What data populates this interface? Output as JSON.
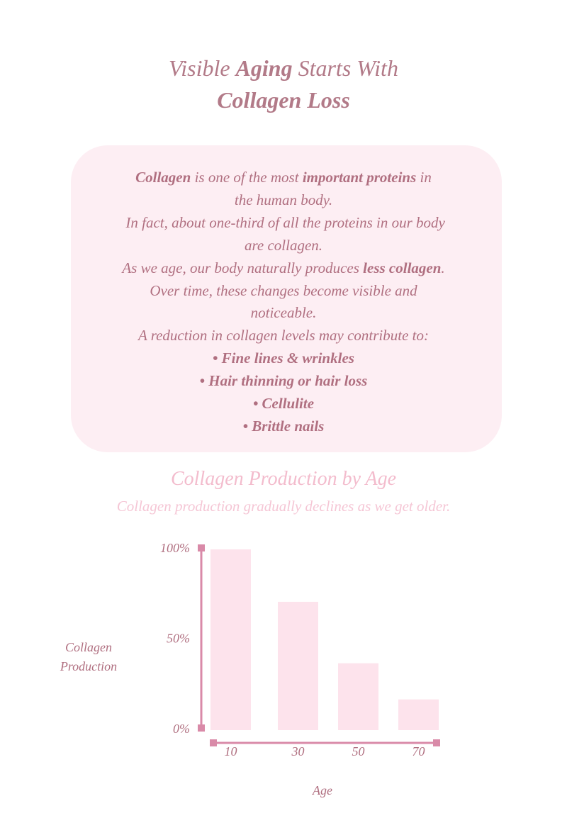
{
  "header": {
    "title_lines": [
      [
        {
          "text": "Visible "
        },
        {
          "text": "Aging",
          "bold": true
        },
        {
          "text": " Starts With"
        }
      ],
      [
        {
          "text": "Collagen Loss",
          "bold": true
        }
      ]
    ]
  },
  "intro": {
    "lines": [
      [
        {
          "text": "Collagen",
          "bold": true
        },
        {
          "text": " is one of the most "
        },
        {
          "text": "important proteins",
          "bold": true
        },
        {
          "text": " in"
        }
      ],
      [
        {
          "text": "the human body."
        }
      ],
      [
        {
          "text": " In fact, about one-third of all the proteins in our body"
        }
      ],
      [
        {
          "text": "are collagen."
        }
      ],
      [
        {
          "text": "As we age, our body naturally produces "
        },
        {
          "text": "less collagen",
          "bold": true
        },
        {
          "text": "."
        }
      ],
      [
        {
          "text": "Over time, these changes become visible and"
        }
      ],
      [
        {
          "text": "noticeable."
        }
      ],
      [
        {
          "text": "A reduction in collagen levels may contribute to:"
        }
      ],
      [
        {
          "text": "• Fine lines & wrinkles",
          "bold": true
        }
      ],
      [
        {
          "text": "• Hair thinning or hair loss",
          "bold": true
        }
      ],
      [
        {
          "text": "• Cellulite",
          "bold": true
        }
      ],
      [
        {
          "text": "• Brittle nails",
          "bold": true
        }
      ]
    ]
  },
  "chart_data": {
    "type": "bar",
    "title": "Collagen Production by Age",
    "subtitle": "Collagen production gradually declines as we get older.",
    "categories": [
      "10",
      "30",
      "50",
      "70"
    ],
    "values": [
      100,
      71,
      37,
      17
    ],
    "color": "#fde3ec",
    "ylim": [
      0,
      100
    ],
    "yticks": [
      {
        "value": 0,
        "label": "0%"
      },
      {
        "value": 50,
        "label": "50%"
      },
      {
        "value": 100,
        "label": "100%"
      }
    ],
    "y_label": "Collagen Production",
    "x_label": "Age"
  }
}
